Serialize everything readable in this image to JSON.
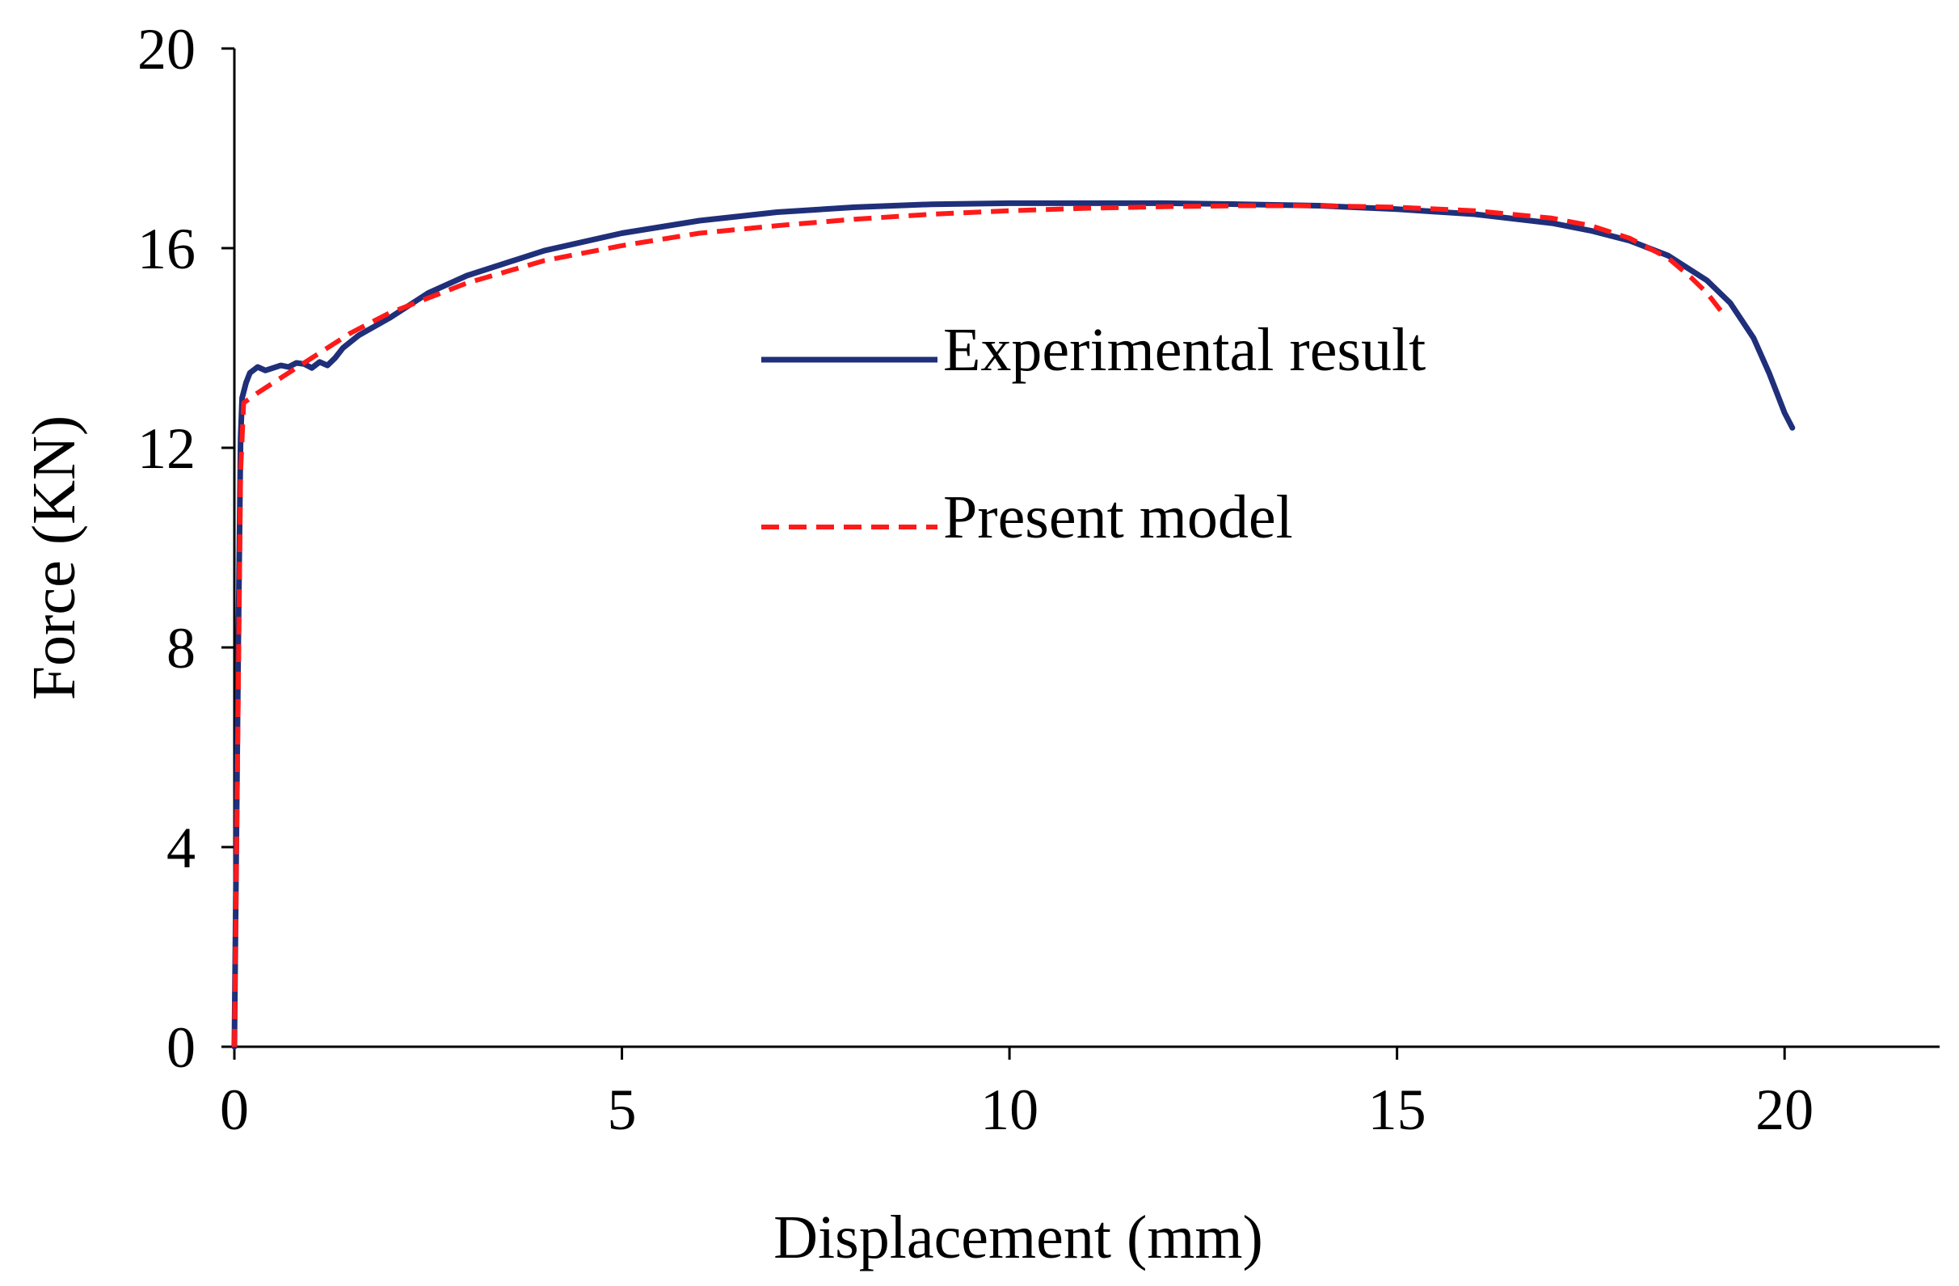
{
  "chart_data": {
    "type": "line",
    "title": "",
    "xlabel": "Displacement (mm)",
    "ylabel": "Force (KN)",
    "xlim": [
      0,
      22
    ],
    "ylim": [
      0,
      20
    ],
    "xticks": [
      0,
      5,
      10,
      15,
      20
    ],
    "yticks": [
      0,
      4,
      8,
      12,
      16,
      20
    ],
    "grid": false,
    "legend_position": "center-right",
    "colors": {
      "experimental": "#1f2f7a",
      "model": "#ff1a1a"
    },
    "series": [
      {
        "name": "Experimental result",
        "style": "solid",
        "x": [
          0,
          0.05,
          0.08,
          0.1,
          0.15,
          0.2,
          0.3,
          0.4,
          0.5,
          0.6,
          0.7,
          0.8,
          0.9,
          1.0,
          1.1,
          1.2,
          1.3,
          1.4,
          1.6,
          2.0,
          2.5,
          3,
          4,
          5,
          6,
          7,
          8,
          9,
          10,
          11,
          12,
          13,
          14,
          15,
          16,
          17,
          17.5,
          18,
          18.5,
          19,
          19.3,
          19.6,
          19.8,
          20.0,
          20.1
        ],
        "y": [
          0,
          8.0,
          12.2,
          13.0,
          13.3,
          13.5,
          13.62,
          13.55,
          13.6,
          13.65,
          13.62,
          13.7,
          13.68,
          13.6,
          13.72,
          13.65,
          13.8,
          14.0,
          14.25,
          14.6,
          15.1,
          15.45,
          15.95,
          16.3,
          16.55,
          16.72,
          16.82,
          16.88,
          16.9,
          16.9,
          16.9,
          16.88,
          16.85,
          16.78,
          16.68,
          16.5,
          16.35,
          16.15,
          15.85,
          15.35,
          14.9,
          14.2,
          13.5,
          12.7,
          12.4
        ]
      },
      {
        "name": "Present model",
        "style": "dashed",
        "x": [
          0,
          0.05,
          0.08,
          0.12,
          0.3,
          0.6,
          1,
          1.5,
          2,
          3,
          4,
          5,
          6,
          7,
          8,
          9,
          10,
          11,
          12,
          13,
          14,
          15,
          16,
          17,
          17.5,
          18,
          18.5,
          18.8,
          19.0,
          19.2
        ],
        "y": [
          0,
          7.0,
          11.5,
          12.9,
          13.1,
          13.4,
          13.8,
          14.3,
          14.7,
          15.3,
          15.75,
          16.05,
          16.3,
          16.45,
          16.58,
          16.68,
          16.75,
          16.8,
          16.83,
          16.85,
          16.85,
          16.82,
          16.75,
          16.6,
          16.45,
          16.2,
          15.8,
          15.4,
          15.1,
          14.7
        ]
      }
    ]
  }
}
